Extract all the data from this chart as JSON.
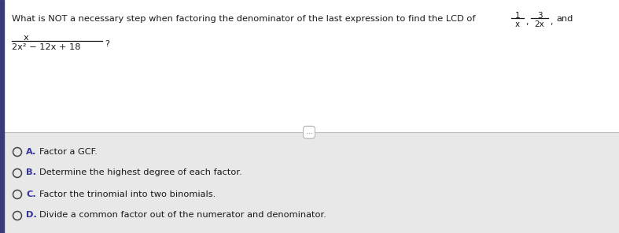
{
  "top_bg": "#ffffff",
  "bottom_bg": "#e8e8e8",
  "question_text": "What is NOT a necessary step when factoring the denominator of the last expression to find the LCD of",
  "fraction1_num": "1",
  "fraction1_den": "x",
  "fraction2_num": "3",
  "fraction2_den": "2x",
  "and_text": "and",
  "expr_num": "x",
  "expr_den": "2x² − 12x + 18",
  "question_mark": "?",
  "divider_text": "...",
  "options": [
    {
      "label": "A.",
      "text": "Factor a GCF."
    },
    {
      "label": "B.",
      "text": "Determine the highest degree of each factor."
    },
    {
      "label": "C.",
      "text": "Factor the trinomial into two binomials."
    },
    {
      "label": "D.",
      "text": "Divide a common factor out of the numerator and denominator."
    }
  ],
  "left_bar_color": "#3a3a7a",
  "text_color": "#1a1a1a",
  "option_text_color": "#1a1a1a",
  "divider_color": "#bbbbbb",
  "circle_color": "#444444",
  "option_label_color": "#333399"
}
